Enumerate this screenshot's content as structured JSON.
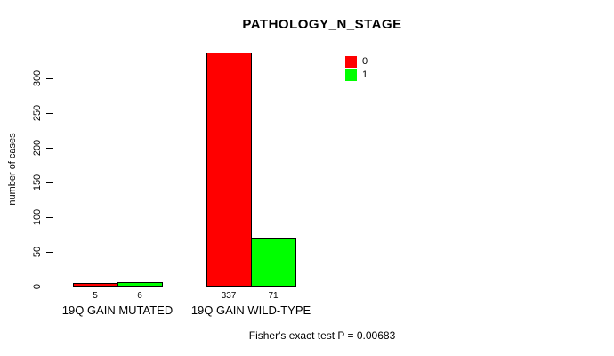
{
  "chart_data": {
    "type": "bar",
    "title": "PATHOLOGY_N_STAGE",
    "categories": [
      "19Q GAIN MUTATED",
      "19Q GAIN WILD-TYPE"
    ],
    "series": [
      {
        "name": "0",
        "color": "#ff0000",
        "values": [
          5,
          337
        ]
      },
      {
        "name": "1",
        "color": "#00ff00",
        "values": [
          6,
          71
        ]
      }
    ],
    "value_labels": [
      [
        "5",
        "337"
      ],
      [
        "6",
        "71"
      ]
    ],
    "ylabel": "number of cases",
    "xlabel": "",
    "yticks": [
      0,
      50,
      100,
      150,
      200,
      250,
      300
    ],
    "ylim": [
      0,
      340
    ],
    "grid": false,
    "legend_position": "inside-top-right",
    "annotation": "Fisher's exact test P = 0.00683"
  }
}
